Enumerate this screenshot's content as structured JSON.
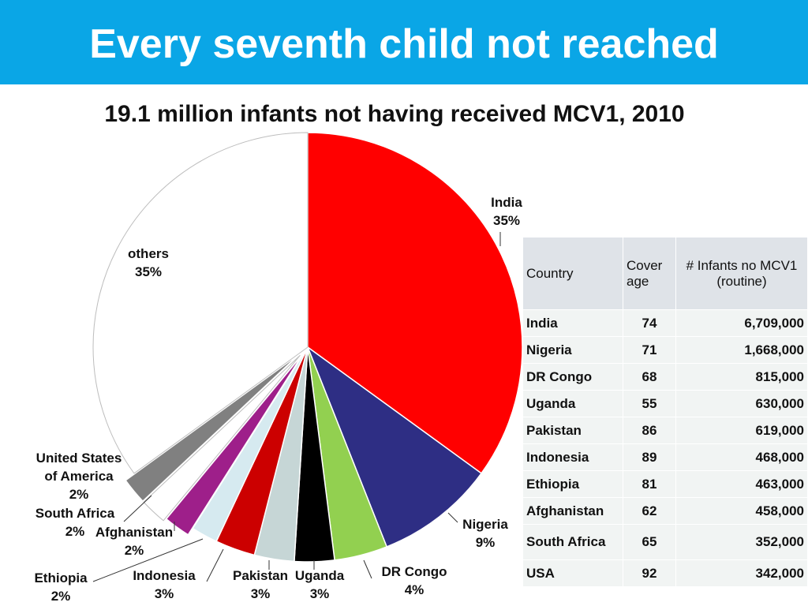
{
  "header": {
    "title": "Every seventh child not reached"
  },
  "chart_data": {
    "type": "pie",
    "title": "19.1 million infants not having received MCV1, 2010",
    "slices": [
      {
        "name": "India",
        "value": 35,
        "label": "35%",
        "color": "#ff0000"
      },
      {
        "name": "Nigeria",
        "value": 9,
        "label": "9%",
        "color": "#2e2e84"
      },
      {
        "name": "DR Congo",
        "value": 4,
        "label": "4%",
        "color": "#92d050"
      },
      {
        "name": "Uganda",
        "value": 3,
        "label": "3%",
        "color": "#000000"
      },
      {
        "name": "Pakistan",
        "value": 3,
        "label": "3%",
        "color": "#c6d6d6"
      },
      {
        "name": "Indonesia",
        "value": 3,
        "label": "3%",
        "color": "#cc0000"
      },
      {
        "name": "Ethiopia",
        "value": 2,
        "label": "2%",
        "color": "#d6eaf0"
      },
      {
        "name": "Afghanistan",
        "value": 2,
        "label": "2%",
        "color": "#9e1f8a"
      },
      {
        "name": "South Africa",
        "value": 2,
        "label": "2%",
        "color": "#ffffff"
      },
      {
        "name": "United States of America",
        "value": 2,
        "label": "2%",
        "color": "#808080"
      },
      {
        "name": "others",
        "value": 35,
        "label": "35%",
        "color": "#ffffff"
      }
    ]
  },
  "table": {
    "headers": [
      "Country",
      "Cover age",
      "# Infants no MCV1 (routine)"
    ],
    "rows": [
      [
        "India",
        "74",
        "6,709,000"
      ],
      [
        "Nigeria",
        "71",
        "1,668,000"
      ],
      [
        "DR Congo",
        "68",
        "815,000"
      ],
      [
        "Uganda",
        "55",
        "630,000"
      ],
      [
        "Pakistan",
        "86",
        "619,000"
      ],
      [
        "Indonesia",
        "89",
        "468,000"
      ],
      [
        "Ethiopia",
        "81",
        "463,000"
      ],
      [
        "Afghanistan",
        "62",
        "458,000"
      ],
      [
        "South Africa",
        "65",
        "352,000"
      ],
      [
        "USA",
        "92",
        "342,000"
      ]
    ]
  }
}
